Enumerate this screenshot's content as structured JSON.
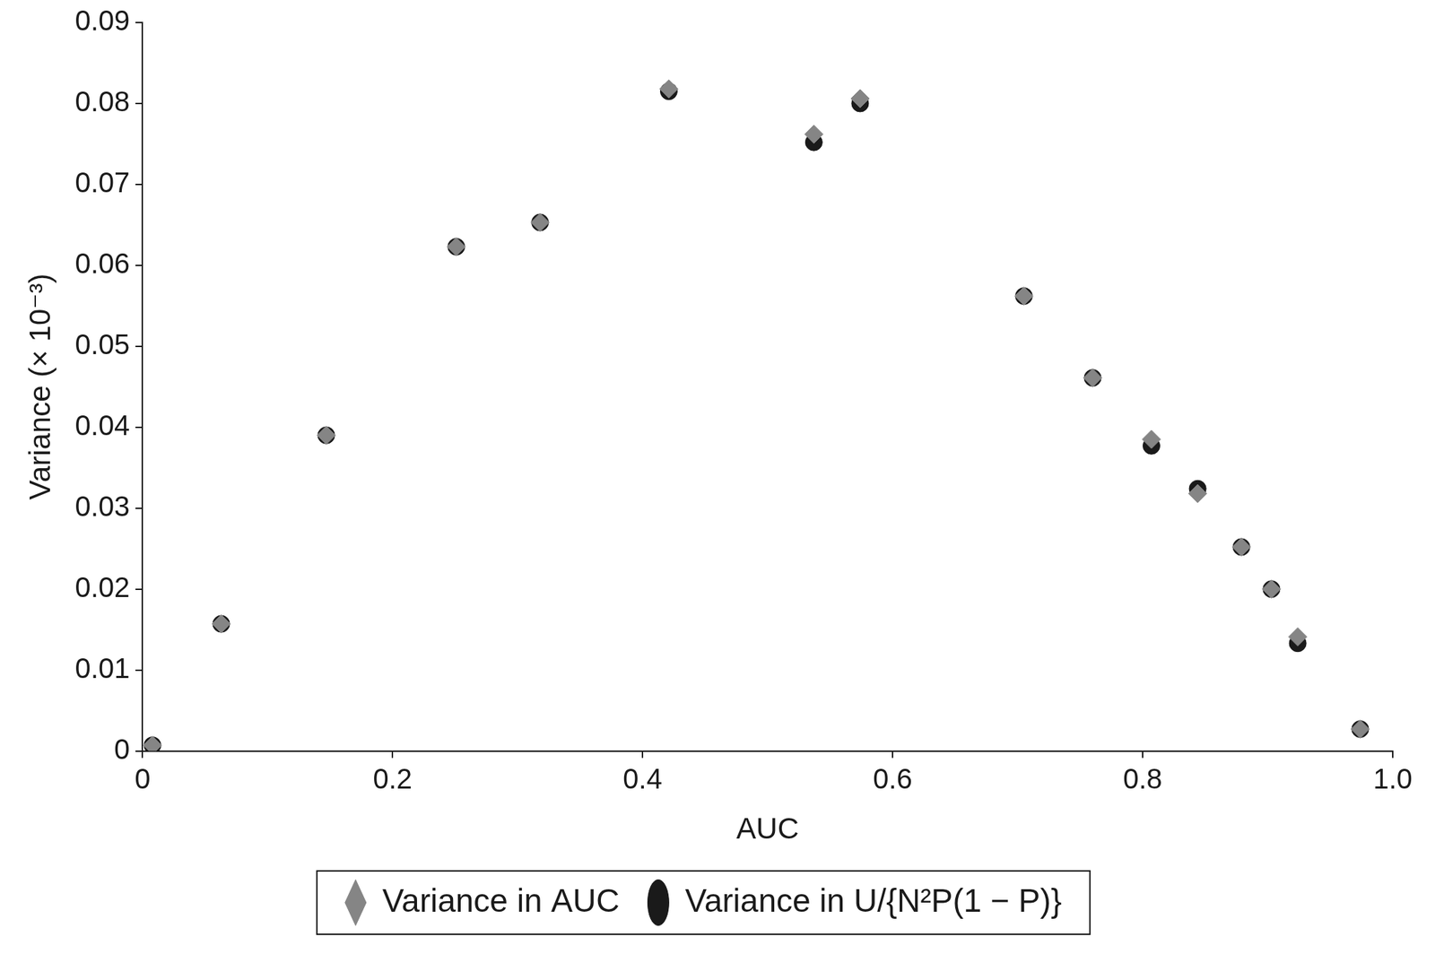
{
  "chart_data": {
    "type": "scatter",
    "x_label": "AUC",
    "y_label": "Variance (× 10⁻³)",
    "xlim": [
      0,
      1
    ],
    "xticks": [
      0,
      0.2,
      0.4,
      0.6,
      0.8,
      {
        "value": 1,
        "label": "1.0"
      }
    ],
    "ylim": [
      0,
      0.09
    ],
    "yticks": [
      0,
      0.01,
      0.02,
      0.03,
      0.04,
      0.05,
      0.06,
      0.07,
      0.08,
      0.09
    ],
    "grid": false,
    "legend": "bottom",
    "series": [
      {
        "name": "Variance in AUC",
        "color": "#858585",
        "marker": "diamond",
        "x": [
          0.008,
          0.063,
          0.147,
          0.251,
          0.318,
          0.421,
          0.537,
          0.574,
          0.705,
          0.76,
          0.807,
          0.844,
          0.879,
          0.903,
          0.924,
          0.974
        ],
        "values": [
          0.0007,
          0.0157,
          0.039,
          0.0623,
          0.0653,
          0.0818,
          0.0762,
          0.0806,
          0.0562,
          0.0461,
          0.0385,
          0.0318,
          0.0252,
          0.02,
          0.0141,
          0.0027
        ]
      },
      {
        "name": "Variance in U/{N²P(1 − P)}",
        "color": "#1a1a1a",
        "marker": "circle",
        "x": [
          0.008,
          0.063,
          0.147,
          0.251,
          0.318,
          0.421,
          0.537,
          0.574,
          0.705,
          0.76,
          0.807,
          0.844,
          0.879,
          0.903,
          0.924,
          0.974
        ],
        "values": [
          0.0007,
          0.0157,
          0.039,
          0.0623,
          0.0653,
          0.0815,
          0.0752,
          0.08,
          0.0562,
          0.0461,
          0.0377,
          0.0324,
          0.0252,
          0.02,
          0.0133,
          0.0027
        ]
      }
    ]
  }
}
